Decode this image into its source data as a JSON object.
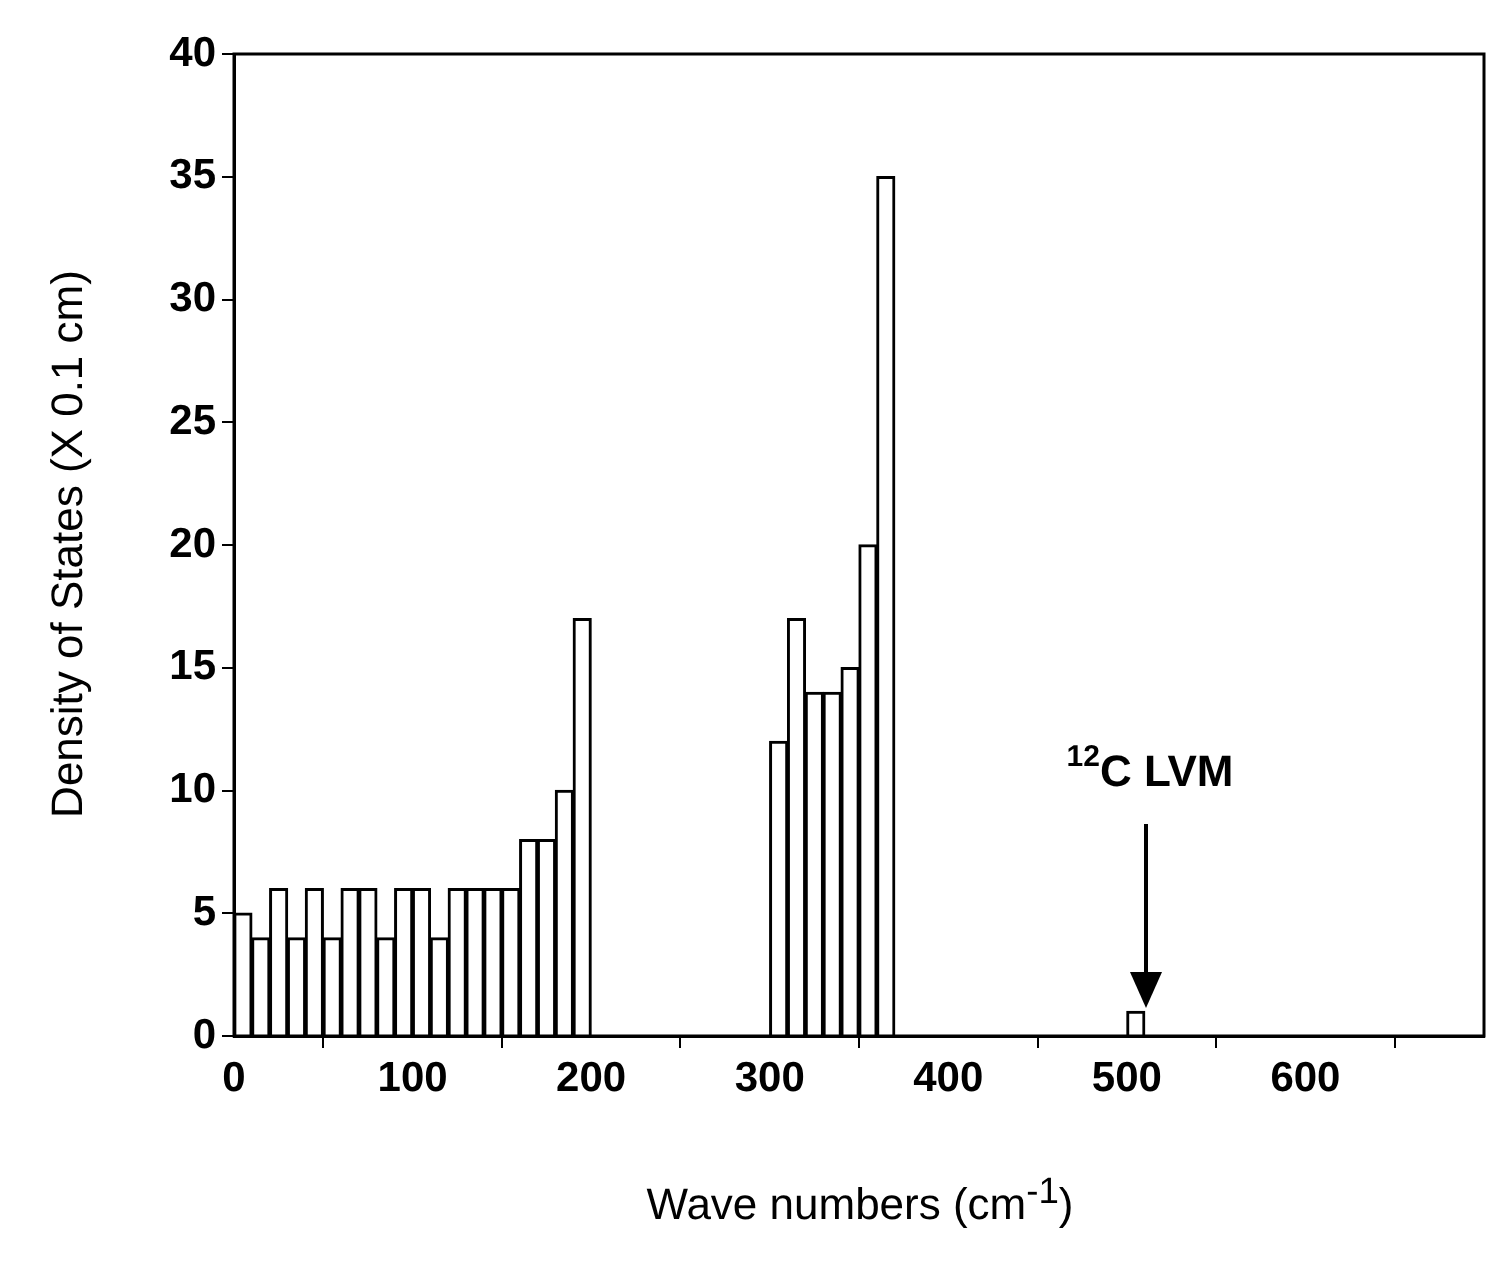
{
  "chart_data": {
    "type": "bar",
    "xlabel": "Wave numbers (cm$^{-1}$)",
    "ylabel": "Density of States (X 0.1 cm)",
    "x": [
      5,
      15,
      25,
      35,
      45,
      55,
      65,
      75,
      85,
      95,
      105,
      115,
      125,
      135,
      145,
      155,
      165,
      175,
      185,
      195,
      305,
      315,
      325,
      335,
      345,
      355,
      365,
      505
    ],
    "values": [
      5,
      4,
      6,
      4,
      6,
      4,
      6,
      6,
      4,
      6,
      6,
      4,
      6,
      6,
      6,
      6,
      8,
      8,
      10,
      17,
      12,
      17,
      14,
      14,
      15,
      20,
      35,
      1
    ],
    "color": "#ffffff",
    "xlim": [
      0,
      700
    ],
    "xticks": [
      0,
      100,
      200,
      300,
      400,
      500,
      600
    ],
    "ylim": [
      0,
      40
    ],
    "yticks": [
      0,
      5,
      10,
      15,
      20,
      25,
      30,
      35,
      40
    ],
    "grid": false,
    "legend": false,
    "annotations": [
      "$^{12}$C LVM"
    ]
  }
}
